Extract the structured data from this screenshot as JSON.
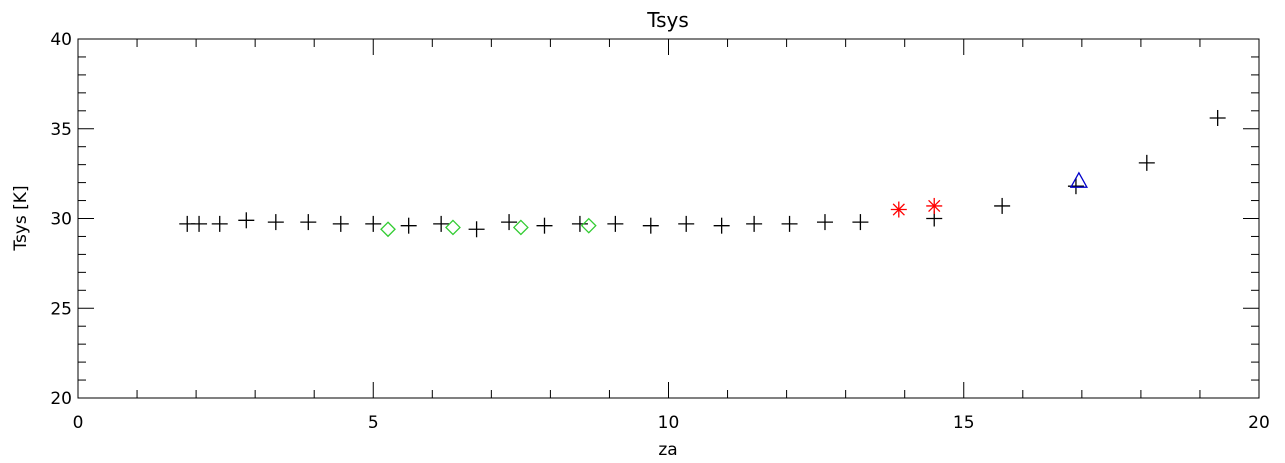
{
  "chart_data": {
    "type": "scatter",
    "title": "Tsys",
    "xlabel": "za",
    "ylabel": "Tsys [K]",
    "xlim": [
      0,
      20
    ],
    "ylim": [
      20,
      40
    ],
    "x_ticks": [
      "0",
      "5",
      "10",
      "15",
      "20"
    ],
    "y_ticks": [
      "20",
      "25",
      "30",
      "35",
      "40"
    ],
    "grid": false,
    "series": [
      {
        "marker": "plus",
        "color": "#000000",
        "points": [
          [
            1.85,
            29.7
          ],
          [
            2.05,
            29.7
          ],
          [
            2.4,
            29.7
          ],
          [
            2.85,
            29.9
          ],
          [
            3.35,
            29.8
          ],
          [
            3.9,
            29.8
          ],
          [
            4.45,
            29.7
          ],
          [
            5.0,
            29.7
          ],
          [
            5.6,
            29.6
          ],
          [
            6.15,
            29.7
          ],
          [
            6.75,
            29.4
          ],
          [
            7.3,
            29.8
          ],
          [
            7.9,
            29.6
          ],
          [
            8.5,
            29.7
          ],
          [
            9.1,
            29.7
          ],
          [
            9.7,
            29.6
          ],
          [
            10.3,
            29.7
          ],
          [
            10.9,
            29.6
          ],
          [
            11.45,
            29.7
          ],
          [
            12.05,
            29.7
          ],
          [
            12.65,
            29.8
          ],
          [
            13.25,
            29.8
          ],
          [
            14.5,
            30.0
          ],
          [
            15.65,
            30.7
          ],
          [
            16.9,
            31.8
          ],
          [
            18.1,
            33.1
          ],
          [
            19.3,
            35.6
          ]
        ]
      },
      {
        "marker": "diamond",
        "color": "#33cc33",
        "points": [
          [
            5.25,
            29.4
          ],
          [
            6.35,
            29.5
          ],
          [
            7.5,
            29.5
          ],
          [
            8.65,
            29.6
          ]
        ]
      },
      {
        "marker": "asterisk",
        "color": "#ff0000",
        "points": [
          [
            13.9,
            30.5
          ],
          [
            14.5,
            30.7
          ]
        ]
      },
      {
        "marker": "triangle",
        "color": "#0000cc",
        "points": [
          [
            16.95,
            32.1
          ]
        ]
      }
    ]
  }
}
